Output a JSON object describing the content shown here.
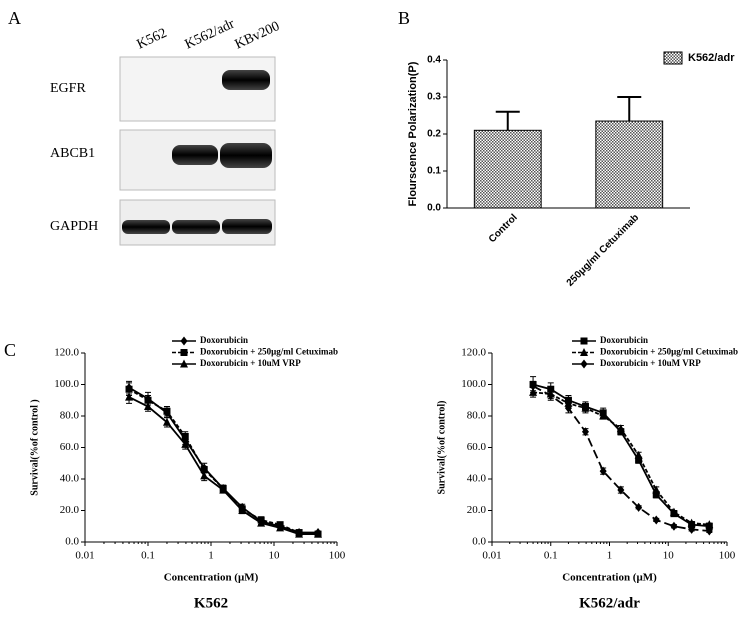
{
  "panel_labels": [
    "A",
    "B",
    "C"
  ],
  "blot": {
    "lanes": [
      "K562",
      "K562/adr",
      "KBv200"
    ],
    "proteins": [
      "EGFR",
      "ABCB1",
      "GAPDH"
    ]
  },
  "chart_data": [
    {
      "type": "bar",
      "ylabel": "Flourscence Polarization(P)",
      "categories": [
        "Control",
        "250μg/ml Cetuximab"
      ],
      "series": [
        {
          "name": "K562/adr",
          "color": "#000000",
          "values": [
            0.21,
            0.235
          ],
          "errors": [
            0.05,
            0.065
          ]
        }
      ],
      "ylim": [
        0,
        0.4
      ],
      "yticks": [
        {
          "value": 0,
          "label": "0.0"
        },
        0.1,
        0.2,
        0.3,
        0.4
      ],
      "legend": "top-right"
    },
    {
      "type": "line",
      "title": "K562",
      "xlabel": "Concentration (μM)",
      "ylabel": "Survival(%of  control )",
      "x": [
        0.05,
        0.1,
        0.2,
        0.39,
        0.78,
        1.56,
        3.13,
        6.25,
        12.5,
        25,
        50
      ],
      "series": [
        {
          "name": "Doxorubicin",
          "color": "#000000",
          "marker": "diamond",
          "dash": "solid",
          "values": [
            98,
            91,
            82,
            65,
            47,
            34,
            22,
            13,
            10,
            6,
            6
          ],
          "errors": [
            4,
            4,
            3,
            3,
            3,
            2,
            2,
            2,
            1,
            1,
            1
          ]
        },
        {
          "name": "Doxorubicin + 250μg/ml  Cetuximab",
          "color": "#000000",
          "marker": "square",
          "dash": "dashed",
          "values": [
            97,
            90,
            83,
            67,
            46,
            34,
            21,
            14,
            11,
            6,
            5
          ],
          "errors": [
            4,
            3,
            3,
            3,
            2,
            2,
            2,
            2,
            1,
            1,
            1
          ]
        },
        {
          "name": "Doxorubicin + 10uM VRP",
          "color": "#000000",
          "marker": "triangle",
          "dash": "solid",
          "values": [
            92,
            86,
            76,
            62,
            42,
            33,
            20,
            12,
            9,
            5,
            5
          ],
          "errors": [
            4,
            3,
            3,
            3,
            3,
            2,
            2,
            1,
            1,
            1,
            1
          ]
        }
      ],
      "xscale": "log",
      "xlim": [
        0.01,
        100
      ],
      "xticks": [
        0.01,
        0.1,
        1,
        10,
        100
      ],
      "ylim": [
        0,
        120
      ],
      "yticks": [
        {
          "value": 0,
          "label": "0.0"
        },
        {
          "value": 20,
          "label": "20.0"
        },
        {
          "value": 40,
          "label": "40.0"
        },
        {
          "value": 60,
          "label": "60.0"
        },
        {
          "value": 80,
          "label": "80.0"
        },
        {
          "value": 100,
          "label": "100.0"
        },
        {
          "value": 120,
          "label": "120.0"
        }
      ],
      "legend": "top"
    },
    {
      "type": "line",
      "title": "K562/adr",
      "xlabel": "Concentration (μM)",
      "ylabel": "Survival(%of  control)",
      "x": [
        0.05,
        0.1,
        0.2,
        0.39,
        0.78,
        1.56,
        3.13,
        6.25,
        12.5,
        25,
        50
      ],
      "series": [
        {
          "name": "Doxorubicin",
          "color": "#000000",
          "marker": "square",
          "dash": "solid",
          "values": [
            100,
            97,
            90,
            86,
            82,
            70,
            52,
            30,
            18,
            11,
            10
          ],
          "errors": [
            5,
            4,
            3,
            3,
            3,
            2,
            2,
            2,
            1,
            1,
            1
          ]
        },
        {
          "name": "Doxorubicin + 250μg/ml  Cetuximab",
          "color": "#000000",
          "marker": "triangle",
          "dash": "dashed",
          "values": [
            95,
            94,
            88,
            85,
            80,
            72,
            55,
            33,
            19,
            12,
            11
          ],
          "errors": [
            3,
            3,
            3,
            3,
            2,
            2,
            2,
            2,
            1,
            1,
            1
          ]
        },
        {
          "name": "Doxorubicin + 10uM VRP",
          "color": "#000000",
          "marker": "diamond",
          "dash": "longdash",
          "values": [
            99,
            93,
            85,
            70,
            45,
            33,
            22,
            14,
            10,
            8,
            7
          ],
          "errors": [
            3,
            3,
            3,
            2,
            2,
            2,
            1,
            1,
            1,
            1,
            1
          ]
        }
      ],
      "xscale": "log",
      "xlim": [
        0.01,
        100
      ],
      "xticks": [
        0.01,
        0.1,
        1,
        10,
        100
      ],
      "ylim": [
        0,
        120
      ],
      "yticks": [
        {
          "value": 0,
          "label": "0.0"
        },
        {
          "value": 20,
          "label": "20.0"
        },
        {
          "value": 40,
          "label": "40.0"
        },
        {
          "value": 60,
          "label": "60.0"
        },
        {
          "value": 80,
          "label": "80.0"
        },
        {
          "value": 100,
          "label": "100.0"
        },
        {
          "value": 120,
          "label": "120.0"
        }
      ],
      "legend": "top"
    }
  ]
}
